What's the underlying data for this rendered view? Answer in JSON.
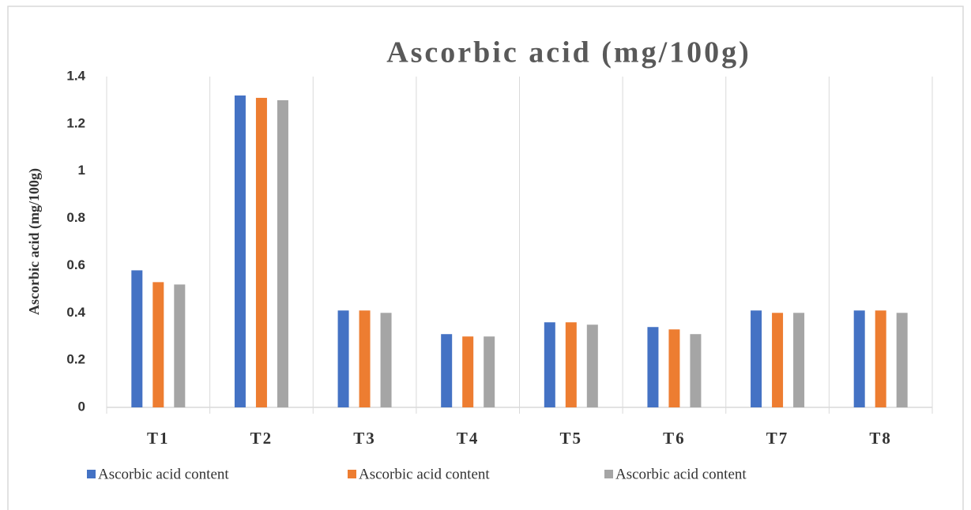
{
  "chart_data": {
    "type": "bar",
    "title": "Ascorbic acid (mg/100g)",
    "y_label": "Ascorbic acid (mg/100g)",
    "categories": [
      "T1",
      "T2",
      "T3",
      "T4",
      "T5",
      "T6",
      "T7",
      "T8"
    ],
    "series": [
      {
        "name": "Ascorbic acid content",
        "color": "#4472c4",
        "values": [
          0.58,
          1.32,
          0.41,
          0.31,
          0.36,
          0.34,
          0.41,
          0.41
        ]
      },
      {
        "name": "Ascorbic acid content",
        "color": "#ed7d31",
        "values": [
          0.53,
          1.31,
          0.41,
          0.3,
          0.36,
          0.33,
          0.4,
          0.41
        ]
      },
      {
        "name": "Ascorbic acid content",
        "color": "#a5a5a5",
        "values": [
          0.52,
          1.3,
          0.4,
          0.3,
          0.35,
          0.31,
          0.4,
          0.4
        ]
      }
    ],
    "ylim": [
      0,
      1.4
    ],
    "yticks": [
      0,
      0.2,
      0.4,
      0.6,
      0.8,
      1,
      1.2,
      1.4
    ],
    "legend": "bottom"
  }
}
